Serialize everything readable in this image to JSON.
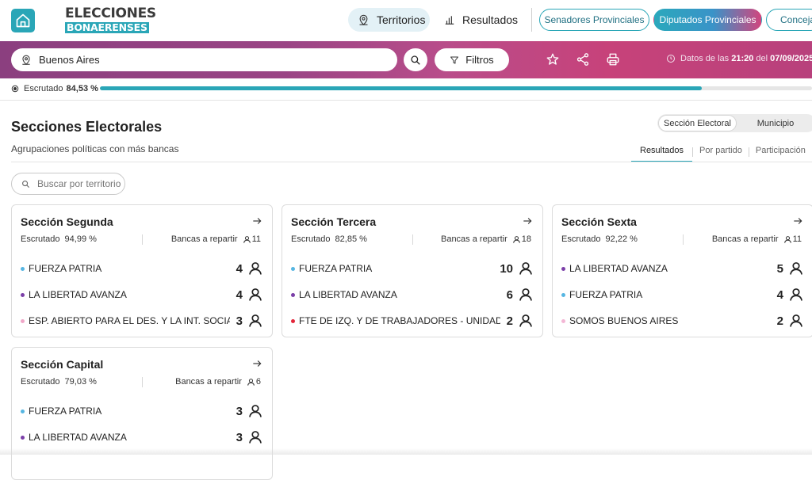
{
  "header": {
    "logo_line1": "ELECCIONES",
    "logo_line2": "BONAERENSES",
    "nav": [
      {
        "label": "Territorios",
        "icon": "map-pin-icon",
        "active": true
      },
      {
        "label": "Resultados",
        "icon": "bar-chart-icon",
        "active": false
      }
    ],
    "chambers": [
      {
        "label": "Senadores Provinciales",
        "active": false
      },
      {
        "label": "Diputados Provinciales",
        "active": true
      },
      {
        "label": "Concejales",
        "active": false
      }
    ]
  },
  "search_bar": {
    "location_value": "Buenos Aires",
    "filters_label": "Filtros",
    "update_prefix": "Datos de las",
    "update_time": "21:20",
    "update_mid": "del",
    "update_date": "07/09/2025"
  },
  "scrutiny": {
    "label": "Escrutado",
    "value": "84,53 %",
    "fraction": 0.8453
  },
  "main": {
    "title": "Secciones Electorales",
    "subtitle": "Agrupaciones políticas con más bancas",
    "view_toggle": [
      {
        "label": "Sección Electoral",
        "active": true
      },
      {
        "label": "Municipio",
        "active": false
      }
    ],
    "tabs": [
      {
        "label": "Resultados",
        "active": true
      },
      {
        "label": "Por partido",
        "active": false
      },
      {
        "label": "Participación",
        "active": false
      }
    ],
    "territory_search_placeholder": "Buscar por territorio"
  },
  "colors": {
    "accent": "#2aa6b7",
    "fuerza_patria": "#56b6e2",
    "la_libertad_avanza": "#7b3fa8",
    "esp_abierto": "#f0a7c8",
    "fte_izq": "#e3263a",
    "somos_buenos_aires": "#f3b7d5"
  },
  "cards": [
    {
      "title": "Sección Segunda",
      "escrutado_label": "Escrutado",
      "escrutado_value": "94,99 %",
      "bancas_label": "Bancas a repartir",
      "bancas_value": "11",
      "parties": [
        {
          "name": "FUERZA PATRIA",
          "seats": "4",
          "color": "#56b6e2"
        },
        {
          "name": "LA LIBERTAD AVANZA",
          "seats": "4",
          "color": "#7b3fa8"
        },
        {
          "name": "ESP. ABIERTO PARA EL DES. Y LA INT. SOCIAL",
          "seats": "3",
          "color": "#f0a7c8"
        }
      ]
    },
    {
      "title": "Sección Tercera",
      "escrutado_label": "Escrutado",
      "escrutado_value": "82,85 %",
      "bancas_label": "Bancas a repartir",
      "bancas_value": "18",
      "parties": [
        {
          "name": "FUERZA PATRIA",
          "seats": "10",
          "color": "#56b6e2"
        },
        {
          "name": "LA LIBERTAD AVANZA",
          "seats": "6",
          "color": "#7b3fa8"
        },
        {
          "name": "FTE DE IZQ. Y DE TRABAJADORES - UNIDAD",
          "seats": "2",
          "color": "#e3263a"
        }
      ]
    },
    {
      "title": "Sección Sexta",
      "escrutado_label": "Escrutado",
      "escrutado_value": "92,22 %",
      "bancas_label": "Bancas a repartir",
      "bancas_value": "11",
      "parties": [
        {
          "name": "LA LIBERTAD AVANZA",
          "seats": "5",
          "color": "#7b3fa8"
        },
        {
          "name": "FUERZA PATRIA",
          "seats": "4",
          "color": "#56b6e2"
        },
        {
          "name": "SOMOS BUENOS AIRES",
          "seats": "2",
          "color": "#f3b7d5"
        }
      ]
    },
    {
      "title": "Sección Capital",
      "escrutado_label": "Escrutado",
      "escrutado_value": "79,03 %",
      "bancas_label": "Bancas a repartir",
      "bancas_value": "6",
      "parties": [
        {
          "name": "FUERZA PATRIA",
          "seats": "3",
          "color": "#56b6e2"
        },
        {
          "name": "LA LIBERTAD AVANZA",
          "seats": "3",
          "color": "#7b3fa8"
        }
      ]
    }
  ]
}
